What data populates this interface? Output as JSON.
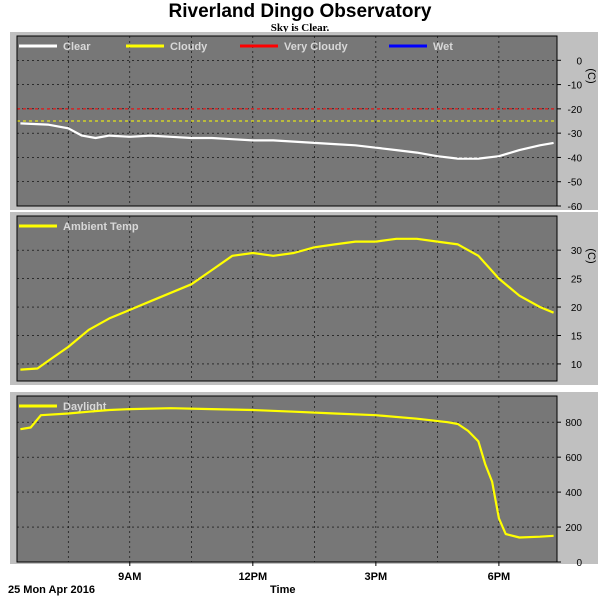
{
  "header": {
    "title": "Riverland Dingo Observatory",
    "subtitle": "Sky is Clear."
  },
  "footer": {
    "date": "25 Mon Apr 2016",
    "xlabel": "Time"
  },
  "colors": {
    "panel_bg": "#777777",
    "outer_bg": "#c0c0c0",
    "clear": "#ffffff",
    "cloudy": "#ffff00",
    "very_cloudy": "#ff0000",
    "wet": "#0000ff",
    "grid": "#000000"
  },
  "chart_data": [
    {
      "type": "line",
      "name": "sky-temperature",
      "ylabel": "(C)",
      "ylim": [
        -60,
        10
      ],
      "yticks": [
        0,
        -10,
        -20,
        -30,
        -40,
        -50,
        -60
      ],
      "legend": [
        "Clear",
        "Cloudy",
        "Very Cloudy",
        "Wet"
      ],
      "legend_colors": [
        "#ffffff",
        "#ffff00",
        "#ff0000",
        "#0000ff"
      ],
      "thresholds": [
        {
          "name": "Very Cloudy",
          "value": -20,
          "color": "#ff0000"
        },
        {
          "name": "Cloudy",
          "value": -25,
          "color": "#ffff00"
        }
      ],
      "series": [
        {
          "name": "Clear",
          "color": "#ffffff",
          "points": [
            [
              "06:20",
              -26
            ],
            [
              "07:00",
              -26.5
            ],
            [
              "07:30",
              -28
            ],
            [
              "07:50",
              -31
            ],
            [
              "08:10",
              -32
            ],
            [
              "08:30",
              -31
            ],
            [
              "09:00",
              -31.5
            ],
            [
              "09:30",
              -31
            ],
            [
              "10:00",
              -31.5
            ],
            [
              "10:30",
              -32
            ],
            [
              "11:00",
              -32
            ],
            [
              "11:30",
              -32.5
            ],
            [
              "12:00",
              -33
            ],
            [
              "12:30",
              -33
            ],
            [
              "13:00",
              -33.5
            ],
            [
              "13:30",
              -34
            ],
            [
              "14:00",
              -34.5
            ],
            [
              "14:30",
              -35
            ],
            [
              "15:00",
              -36
            ],
            [
              "15:30",
              -37
            ],
            [
              "16:00",
              -38
            ],
            [
              "16:30",
              -39.5
            ],
            [
              "17:00",
              -40.5
            ],
            [
              "17:30",
              -40.5
            ],
            [
              "18:00",
              -39.5
            ],
            [
              "18:30",
              -37
            ],
            [
              "19:00",
              -35
            ],
            [
              "19:20",
              -34
            ]
          ]
        }
      ]
    },
    {
      "type": "line",
      "name": "ambient-temperature",
      "ylabel": "(C)",
      "ylim": [
        7,
        36
      ],
      "yticks": [
        30,
        25,
        20,
        15,
        10
      ],
      "legend": [
        "Ambient Temp"
      ],
      "legend_colors": [
        "#ffff00"
      ],
      "series": [
        {
          "name": "Ambient Temp",
          "color": "#ffff00",
          "points": [
            [
              "06:20",
              9
            ],
            [
              "06:45",
              9.2
            ],
            [
              "07:00",
              10.5
            ],
            [
              "07:30",
              13
            ],
            [
              "08:00",
              16
            ],
            [
              "08:30",
              18
            ],
            [
              "09:00",
              19.5
            ],
            [
              "09:30",
              21
            ],
            [
              "10:00",
              22.5
            ],
            [
              "10:30",
              24
            ],
            [
              "11:00",
              26.5
            ],
            [
              "11:30",
              29
            ],
            [
              "12:00",
              29.5
            ],
            [
              "12:30",
              29
            ],
            [
              "13:00",
              29.5
            ],
            [
              "13:30",
              30.5
            ],
            [
              "14:00",
              31
            ],
            [
              "14:30",
              31.5
            ],
            [
              "15:00",
              31.5
            ],
            [
              "15:30",
              32
            ],
            [
              "16:00",
              32
            ],
            [
              "16:30",
              31.5
            ],
            [
              "17:00",
              31
            ],
            [
              "17:30",
              29
            ],
            [
              "18:00",
              25
            ],
            [
              "18:30",
              22
            ],
            [
              "19:00",
              20
            ],
            [
              "19:20",
              19
            ]
          ]
        }
      ]
    },
    {
      "type": "line",
      "name": "daylight",
      "ylabel": "",
      "ylim": [
        0,
        950
      ],
      "yticks": [
        800,
        600,
        400,
        200,
        0
      ],
      "legend": [
        "Daylight"
      ],
      "legend_colors": [
        "#ffff00"
      ],
      "series": [
        {
          "name": "Daylight",
          "color": "#ffff00",
          "points": [
            [
              "06:20",
              760
            ],
            [
              "06:35",
              770
            ],
            [
              "06:50",
              840
            ],
            [
              "07:30",
              850
            ],
            [
              "08:00",
              860
            ],
            [
              "08:30",
              870
            ],
            [
              "09:00",
              875
            ],
            [
              "10:00",
              880
            ],
            [
              "11:00",
              875
            ],
            [
              "12:00",
              870
            ],
            [
              "13:00",
              860
            ],
            [
              "14:00",
              850
            ],
            [
              "15:00",
              840
            ],
            [
              "16:00",
              820
            ],
            [
              "16:45",
              800
            ],
            [
              "17:00",
              790
            ],
            [
              "17:15",
              750
            ],
            [
              "17:30",
              690
            ],
            [
              "17:40",
              560
            ],
            [
              "17:50",
              460
            ],
            [
              "18:00",
              250
            ],
            [
              "18:10",
              160
            ],
            [
              "18:30",
              140
            ],
            [
              "19:00",
              145
            ],
            [
              "19:20",
              150
            ]
          ]
        }
      ]
    }
  ],
  "xaxis": {
    "range": [
      "06:15",
      "19:25"
    ],
    "ticks": [
      {
        "time": "09:00",
        "label": "9AM"
      },
      {
        "time": "12:00",
        "label": "12PM"
      },
      {
        "time": "15:00",
        "label": "3PM"
      },
      {
        "time": "18:00",
        "label": "6PM"
      }
    ],
    "gridlines": [
      "07:30",
      "09:00",
      "10:30",
      "12:00",
      "13:30",
      "15:00",
      "16:30",
      "18:00"
    ]
  }
}
